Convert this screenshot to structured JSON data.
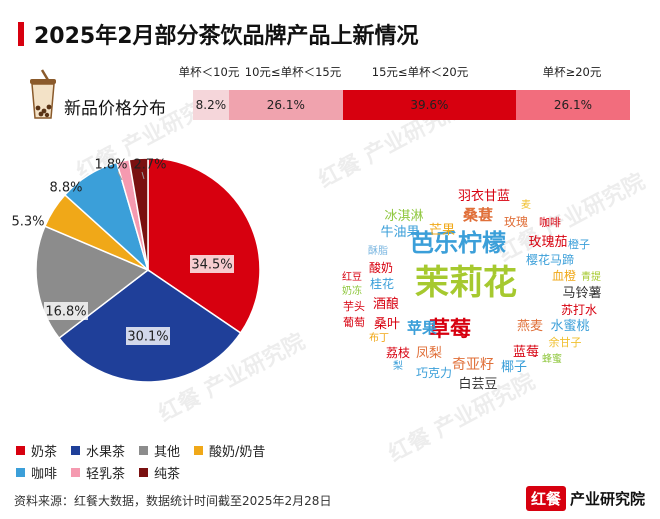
{
  "title": "2025年2月部分茶饮品牌产品上新情况",
  "price_section": {
    "label": "新品价格分布",
    "headers": [
      "单杯＜10元",
      "10元≤单杯＜15元",
      "15元≤单杯＜20元",
      "单杯≥20元"
    ],
    "segments": [
      {
        "label": "8.2%",
        "value": 8.2,
        "color": "#f5d6da"
      },
      {
        "label": "26.1%",
        "value": 26.1,
        "color": "#f0a3ae"
      },
      {
        "label": "39.6%",
        "value": 39.6,
        "color": "#d7000f"
      },
      {
        "label": "26.1%",
        "value": 26.1,
        "color": "#f26d7d"
      }
    ]
  },
  "chart_data": {
    "type": "pie",
    "slices": [
      {
        "name": "奶茶",
        "value": 34.5,
        "label": "34.5%",
        "color": "#d7000f"
      },
      {
        "name": "水果茶",
        "value": 30.1,
        "label": "30.1%",
        "color": "#1f3f99"
      },
      {
        "name": "其他",
        "value": 16.8,
        "label": "16.8%",
        "color": "#8c8c8c"
      },
      {
        "name": "酸奶/奶昔",
        "value": 5.3,
        "label": "5.3%",
        "color": "#f0a818"
      },
      {
        "name": "咖啡",
        "value": 8.8,
        "label": "8.8%",
        "color": "#3b9fd9"
      },
      {
        "name": "轻乳茶",
        "value": 1.8,
        "label": "1.8%",
        "color": "#f59ab0"
      },
      {
        "name": "纯茶",
        "value": 2.7,
        "label": "2.7%",
        "color": "#7a1010"
      }
    ]
  },
  "legend": [
    {
      "name": "奶茶",
      "color": "#d7000f"
    },
    {
      "name": "水果茶",
      "color": "#1f3f99"
    },
    {
      "name": "其他",
      "color": "#8c8c8c"
    },
    {
      "name": "酸奶/奶昔",
      "color": "#f0a818"
    },
    {
      "name": "咖啡",
      "color": "#3b9fd9"
    },
    {
      "name": "轻乳茶",
      "color": "#f59ab0"
    },
    {
      "name": "纯茶",
      "color": "#7a1010"
    }
  ],
  "word_cloud": [
    {
      "text": "茉莉花",
      "color": "#a6c92f"
    },
    {
      "text": "芭乐柠檬",
      "color": "#3b9fd9"
    },
    {
      "text": "草莓",
      "color": "#d7000f"
    },
    {
      "text": "桑葚",
      "color": "#e0703a"
    },
    {
      "text": "羽衣甘蓝",
      "color": "#d7000f"
    },
    {
      "text": "冰淇淋",
      "color": "#8fc73e"
    },
    {
      "text": "芒果",
      "color": "#f0a818"
    },
    {
      "text": "玫瑰",
      "color": "#e0703a"
    },
    {
      "text": "咖啡",
      "color": "#d7000f"
    },
    {
      "text": "麦",
      "color": "#f0c030"
    },
    {
      "text": "牛油果",
      "color": "#3b9fd9"
    },
    {
      "text": "玫瑰茄",
      "color": "#d7000f"
    },
    {
      "text": "橙子",
      "color": "#3b9fd9"
    },
    {
      "text": "酥脂",
      "color": "#7ab6e0"
    },
    {
      "text": "樱花",
      "color": "#3b9fd9"
    },
    {
      "text": "马蹄",
      "color": "#3b9fd9"
    },
    {
      "text": "红豆",
      "color": "#d7000f"
    },
    {
      "text": "酸奶",
      "color": "#d7000f"
    },
    {
      "text": "血橙",
      "color": "#f0a818"
    },
    {
      "text": "青提",
      "color": "#a6c92f"
    },
    {
      "text": "奶冻",
      "color": "#8fc73e"
    },
    {
      "text": "桂花",
      "color": "#3b9fd9"
    },
    {
      "text": "马铃薯",
      "color": "#333333"
    },
    {
      "text": "芋头",
      "color": "#d7000f"
    },
    {
      "text": "酒酿",
      "color": "#d7000f"
    },
    {
      "text": "苏打水",
      "color": "#d7000f"
    },
    {
      "text": "葡萄",
      "color": "#d7000f"
    },
    {
      "text": "桑叶",
      "color": "#d7000f"
    },
    {
      "text": "苹果",
      "color": "#3b9fd9"
    },
    {
      "text": "燕麦",
      "color": "#e0703a"
    },
    {
      "text": "水蜜桃",
      "color": "#3b9fd9"
    },
    {
      "text": "布丁",
      "color": "#f0a818"
    },
    {
      "text": "荔枝",
      "color": "#d7000f"
    },
    {
      "text": "凤梨",
      "color": "#e0703a"
    },
    {
      "text": "蓝莓",
      "color": "#d7000f"
    },
    {
      "text": "余甘子",
      "color": "#f0c030"
    },
    {
      "text": "梨",
      "color": "#3b9fd9"
    },
    {
      "text": "奇亚籽",
      "color": "#e0703a"
    },
    {
      "text": "蜂蜜",
      "color": "#8fc73e"
    },
    {
      "text": "巧克力",
      "color": "#3b9fd9"
    },
    {
      "text": "椰子",
      "color": "#3b9fd9"
    },
    {
      "text": "白芸豆",
      "color": "#333333"
    }
  ],
  "source": "资料来源：红餐大数据，数据统计时间截至2025年2月28日",
  "brand": {
    "logo": "红餐",
    "name": "产业研究院"
  },
  "watermark": "红餐 产业研究院"
}
